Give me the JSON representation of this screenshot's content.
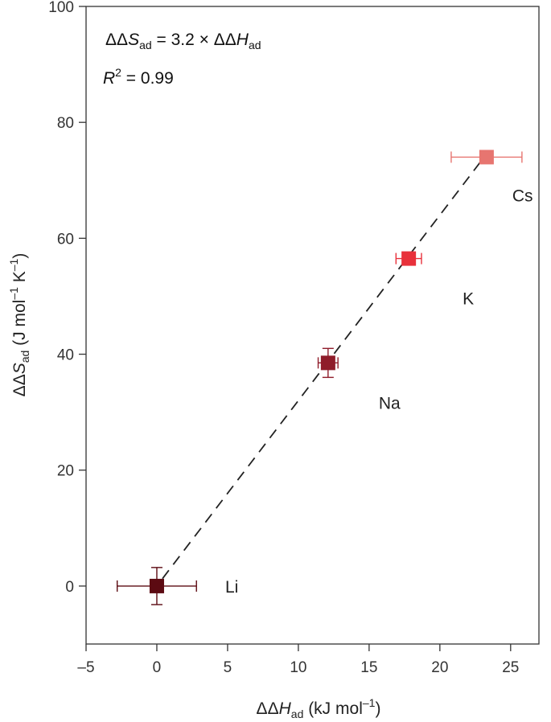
{
  "chart_data": {
    "type": "scatter",
    "xlim": [
      -5,
      27
    ],
    "ylim": [
      -10,
      100
    ],
    "xticks": [
      -5,
      0,
      5,
      10,
      15,
      20,
      25
    ],
    "yticks": [
      0,
      20,
      40,
      60,
      80,
      100
    ],
    "xtick_labels": [
      "–5",
      "0",
      "5",
      "10",
      "15",
      "20",
      "25"
    ],
    "ytick_labels": [
      "0",
      "20",
      "40",
      "60",
      "80",
      "100"
    ],
    "xlabel": {
      "prefix": "ΔΔ",
      "italic": "H",
      "sub": "ad",
      "rest": " (kJ mol",
      "sup": "–1",
      "end": ")"
    },
    "ylabel": {
      "prefix": "ΔΔ",
      "italic": "S",
      "sub": "ad",
      "rest": " (J mol",
      "sup1": "–1",
      "mid": " K",
      "sup2": "–1",
      "end": ")"
    },
    "equation": {
      "lhs_prefix": "ΔΔ",
      "lhs_italic": "S",
      "lhs_sub": "ad",
      "middle": " = 3.2 × ΔΔ",
      "rhs_italic": "H",
      "rhs_sub": "ad"
    },
    "r2": {
      "italic": "R",
      "sup": "2",
      "value": " = 0.99"
    },
    "fit": {
      "slope": 3.2,
      "style": "dashed",
      "color": "#222222"
    },
    "grid": false,
    "points": [
      {
        "label": "Li",
        "x": 0.0,
        "y": 0.0,
        "xerr": 2.8,
        "yerr": 3.2,
        "color": "#5c0a12"
      },
      {
        "label": "Na",
        "x": 12.1,
        "y": 38.5,
        "xerr": 0.7,
        "yerr": 2.5,
        "color": "#8f1c2a"
      },
      {
        "label": "K",
        "x": 17.8,
        "y": 56.5,
        "xerr": 0.9,
        "yerr": 0.8,
        "color": "#e8313b"
      },
      {
        "label": "Cs",
        "x": 23.3,
        "y": 74.0,
        "xerr": 2.5,
        "yerr": 0.8,
        "color": "#e77570"
      }
    ]
  }
}
